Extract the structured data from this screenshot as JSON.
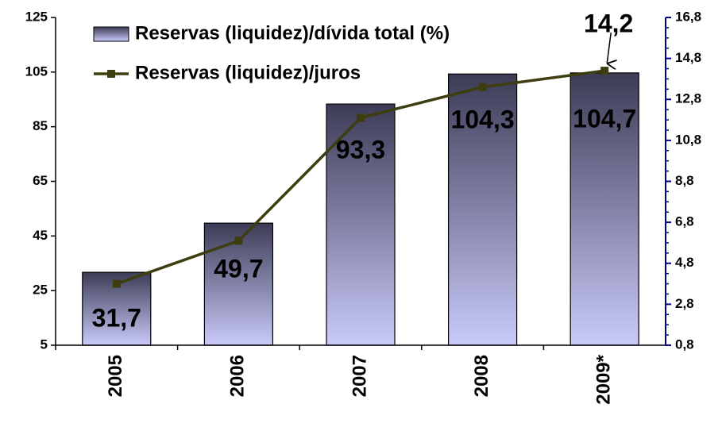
{
  "chart_data": {
    "type": "bar",
    "categories": [
      "2005",
      "2006",
      "2007",
      "2008",
      "2009*"
    ],
    "series": [
      {
        "name": "Reservas (liquidez)/dívida total (%)",
        "type": "bar",
        "color": "#4a4a68",
        "values": [
          31.7,
          49.7,
          93.3,
          104.3,
          104.7
        ],
        "value_labels": [
          "31,7",
          "49,7",
          "93,3",
          "104,3",
          "104,7"
        ]
      },
      {
        "name": "Reservas (liquidez)/juros",
        "type": "line",
        "axis": "y2",
        "color": "#3d3d10",
        "values": [
          3.8,
          5.9,
          11.9,
          13.4,
          14.2
        ],
        "value_labels": [
          null,
          null,
          null,
          null,
          "14,2"
        ]
      }
    ],
    "ylim": [
      5,
      125
    ],
    "yticks": [
      5,
      25,
      45,
      65,
      85,
      105,
      125
    ],
    "y2lim": [
      0.8,
      16.8
    ],
    "y2ticks": [
      {
        "value": 0.8,
        "label": "0,8"
      },
      {
        "value": 2.8,
        "label": "2,8"
      },
      {
        "value": 4.8,
        "label": "4,8"
      },
      {
        "value": 6.8,
        "label": "6,8"
      },
      {
        "value": 8.8,
        "label": "8,8"
      },
      {
        "value": 10.8,
        "label": "10,8"
      },
      {
        "value": 12.8,
        "label": "12,8"
      },
      {
        "value": 14.8,
        "label": "14,8"
      },
      {
        "value": 16.8,
        "label": "16,8"
      }
    ],
    "legend": "top-left"
  }
}
